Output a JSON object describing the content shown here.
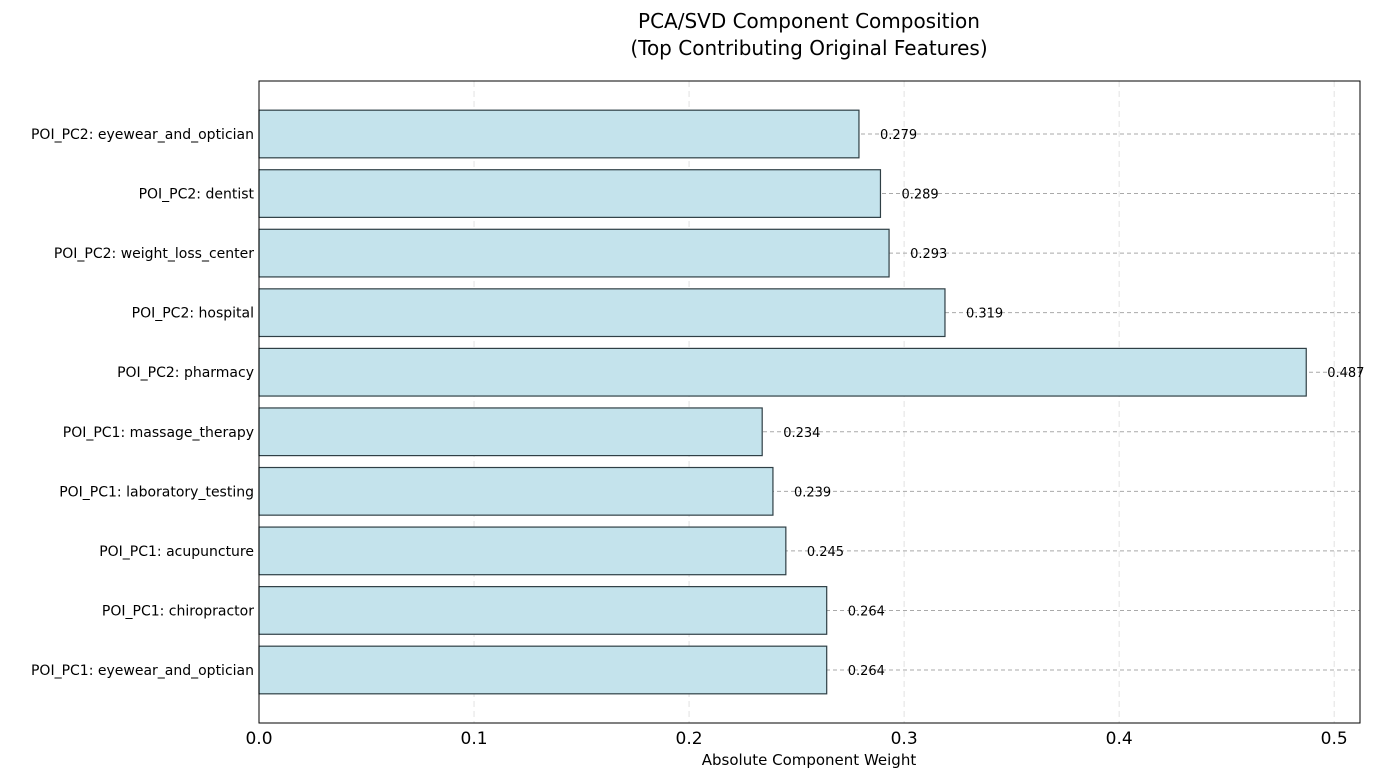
{
  "chart_data": {
    "type": "bar",
    "orientation": "horizontal",
    "title": "PCA/SVD Component Composition",
    "subtitle": "(Top Contributing Original Features)",
    "xlabel": "Absolute Component Weight",
    "ylabel": "",
    "xlim": [
      0,
      0.512
    ],
    "x_ticks": [
      0.0,
      0.1,
      0.2,
      0.3,
      0.4,
      0.5
    ],
    "x_tick_labels": [
      "0.0",
      "0.1",
      "0.2",
      "0.3",
      "0.4",
      "0.5"
    ],
    "grid": true,
    "bar_color": "#c4e3ec",
    "bar_edge_color": "#2f3f45",
    "categories": [
      "POI_PC1: eyewear_and_optician",
      "POI_PC1: chiropractor",
      "POI_PC1: acupuncture",
      "POI_PC1: laboratory_testing",
      "POI_PC1: massage_therapy",
      "POI_PC2: pharmacy",
      "POI_PC2: hospital",
      "POI_PC2: weight_loss_center",
      "POI_PC2: dentist",
      "POI_PC2: eyewear_and_optician"
    ],
    "values": [
      0.264,
      0.264,
      0.245,
      0.239,
      0.234,
      0.487,
      0.319,
      0.293,
      0.289,
      0.279
    ],
    "value_labels": [
      "0.264",
      "0.264",
      "0.245",
      "0.239",
      "0.234",
      "0.487",
      "0.319",
      "0.293",
      "0.289",
      "0.279"
    ]
  }
}
